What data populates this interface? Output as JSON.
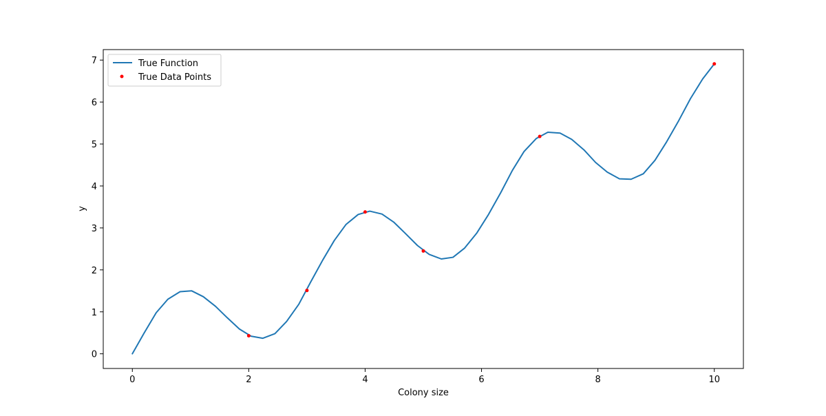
{
  "chart_data": {
    "type": "line",
    "xlabel": "Colony size",
    "ylabel": "y",
    "xlim": [
      -0.5,
      10.5
    ],
    "ylim": [
      -0.35,
      7.25
    ],
    "xticks": [
      0,
      2,
      4,
      6,
      8,
      10
    ],
    "xtick_labels": [
      "0",
      "2",
      "4",
      "6",
      "8",
      "10"
    ],
    "yticks": [
      0,
      1,
      2,
      3,
      4,
      5,
      6,
      7
    ],
    "ytick_labels": [
      "0",
      "1",
      "2",
      "3",
      "4",
      "5",
      "6",
      "7"
    ],
    "grid": false,
    "legend_position": "top-left",
    "series": [
      {
        "name": "True Function",
        "kind": "line",
        "color": "#1f77b4",
        "x": [
          0,
          0.2,
          0.41,
          0.61,
          0.82,
          1.02,
          1.22,
          1.43,
          1.63,
          1.84,
          2.04,
          2.24,
          2.45,
          2.65,
          2.86,
          3.06,
          3.27,
          3.47,
          3.67,
          3.88,
          4.08,
          4.29,
          4.49,
          4.69,
          4.9,
          5.1,
          5.31,
          5.51,
          5.71,
          5.92,
          6.12,
          6.33,
          6.53,
          6.73,
          6.94,
          7.14,
          7.35,
          7.55,
          7.76,
          7.96,
          8.16,
          8.37,
          8.57,
          8.78,
          8.98,
          9.18,
          9.39,
          9.59,
          9.8,
          10.0
        ],
        "y": [
          0.0,
          0.49,
          0.98,
          1.3,
          1.48,
          1.5,
          1.36,
          1.13,
          0.86,
          0.59,
          0.42,
          0.37,
          0.48,
          0.77,
          1.18,
          1.7,
          2.23,
          2.7,
          3.08,
          3.32,
          3.4,
          3.33,
          3.14,
          2.87,
          2.58,
          2.37,
          2.26,
          2.3,
          2.52,
          2.88,
          3.32,
          3.84,
          4.37,
          4.82,
          5.13,
          5.28,
          5.26,
          5.11,
          4.86,
          4.56,
          4.33,
          4.17,
          4.16,
          4.29,
          4.61,
          5.05,
          5.56,
          6.08,
          6.55,
          6.91
        ]
      },
      {
        "name": "True Data Points",
        "kind": "scatter",
        "color": "#ff0000",
        "x": [
          2,
          3,
          4,
          5,
          7,
          10
        ],
        "y": [
          0.43,
          1.51,
          3.38,
          2.45,
          5.18,
          6.91
        ]
      }
    ]
  }
}
